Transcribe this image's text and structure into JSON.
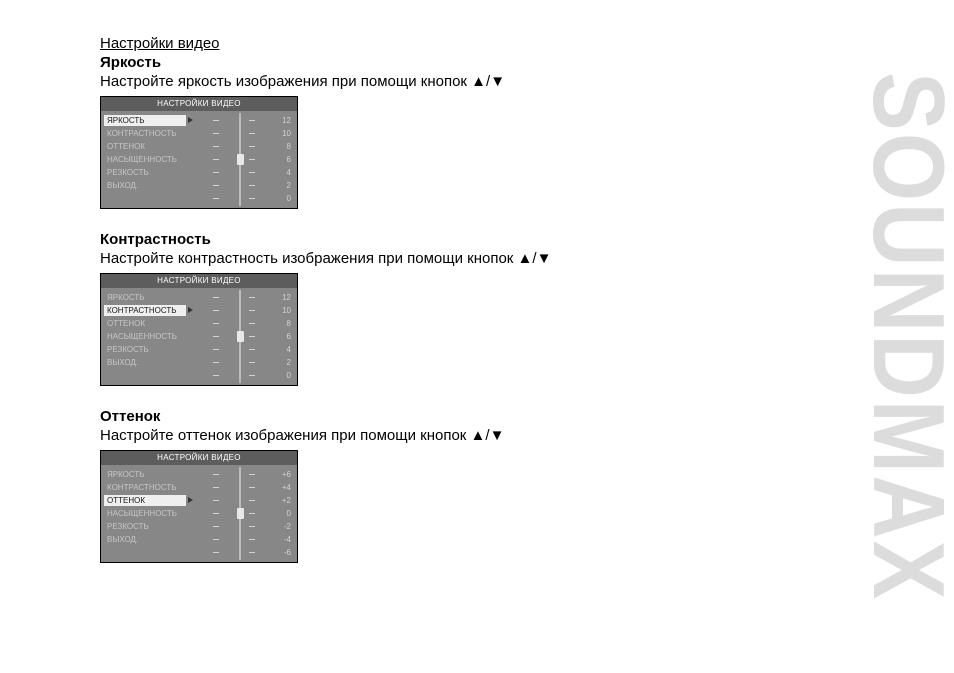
{
  "brand": "SOUNDMAX",
  "triangles": {
    "up": "▲",
    "down": "▼",
    "sep": "/"
  },
  "section_title": "Настройки видео",
  "sections": [
    {
      "heading": "Яркость",
      "desc_pre": "Настройте яркость изображения при помощи кнопок ",
      "menu": {
        "title": "НАСТРОЙКИ ВИДЕО",
        "rows": [
          {
            "label": "ЯРКОСТЬ",
            "val": "12",
            "active": true
          },
          {
            "label": "КОНТРАСТНОСТЬ",
            "val": "10"
          },
          {
            "label": "ОТТЕНОК",
            "val": "8"
          },
          {
            "label": "НАСЫЩЕННОСТЬ",
            "val": "6"
          },
          {
            "label": "РЕЗКОСТЬ",
            "val": "4"
          },
          {
            "label": "ВЫХОД.",
            "val": "2"
          },
          {
            "label": "",
            "val": "0"
          }
        ],
        "knob_row": 3
      }
    },
    {
      "heading": "Контрастность",
      "desc_pre": "Настройте контрастность изображения при помощи кнопок ",
      "menu": {
        "title": "НАСТРОЙКИ ВИДЕО",
        "rows": [
          {
            "label": "ЯРКОСТЬ",
            "val": "12"
          },
          {
            "label": "КОНТРАСТНОСТЬ",
            "val": "10",
            "active": true
          },
          {
            "label": "ОТТЕНОК",
            "val": "8"
          },
          {
            "label": "НАСЫЩЕННОСТЬ",
            "val": "6"
          },
          {
            "label": "РЕЗКОСТЬ",
            "val": "4"
          },
          {
            "label": "ВЫХОД.",
            "val": "2"
          },
          {
            "label": "",
            "val": "0"
          }
        ],
        "knob_row": 3
      }
    },
    {
      "heading": "Оттенок",
      "desc_pre": "Настройте оттенок изображения при помощи кнопок ",
      "menu": {
        "title": "НАСТРОЙКИ ВИДЕО",
        "rows": [
          {
            "label": "ЯРКОСТЬ",
            "val": "+6"
          },
          {
            "label": "КОНТРАСТНОСТЬ",
            "val": "+4"
          },
          {
            "label": "ОТТЕНОК",
            "val": "+2",
            "active": true
          },
          {
            "label": "НАСЫЩЕННОСТЬ",
            "val": "0"
          },
          {
            "label": "РЕЗКОСТЬ",
            "val": "-2"
          },
          {
            "label": "ВЫХОД.",
            "val": "-4"
          },
          {
            "label": "",
            "val": "-6"
          }
        ],
        "knob_row": 3
      }
    }
  ]
}
